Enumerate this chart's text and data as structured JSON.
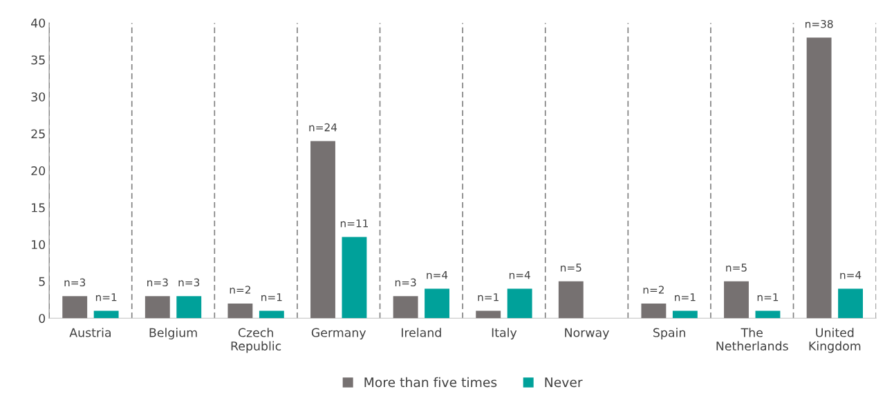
{
  "chart_data": {
    "type": "bar",
    "categories": [
      "Austria",
      "Belgium",
      "Czech Republic",
      "Germany",
      "Ireland",
      "Italy",
      "Norway",
      "Spain",
      "The Netherlands",
      "United Kingdom"
    ],
    "series": [
      {
        "name": "More than five times",
        "color": "#767171",
        "values": [
          3,
          3,
          2,
          24,
          3,
          1,
          5,
          2,
          5,
          38
        ],
        "value_labels": [
          "n=3",
          "n=3",
          "n=2",
          "n=24",
          "n=3",
          "n=1",
          "n=5",
          "n=2",
          "n=5",
          "n=38"
        ]
      },
      {
        "name": "Never",
        "color": "#00a19a",
        "values": [
          1,
          3,
          1,
          11,
          4,
          4,
          null,
          1,
          1,
          4
        ],
        "value_labels": [
          "n=1",
          "n=3",
          "n=1",
          "n=11",
          "n=4",
          "n=4",
          null,
          "n=1",
          "n=1",
          "n=4"
        ]
      }
    ],
    "ylim": [
      0,
      40
    ],
    "yticks": [
      0,
      5,
      10,
      15,
      20,
      25,
      30,
      35,
      40
    ],
    "grid": "x",
    "legend": "bottom"
  }
}
